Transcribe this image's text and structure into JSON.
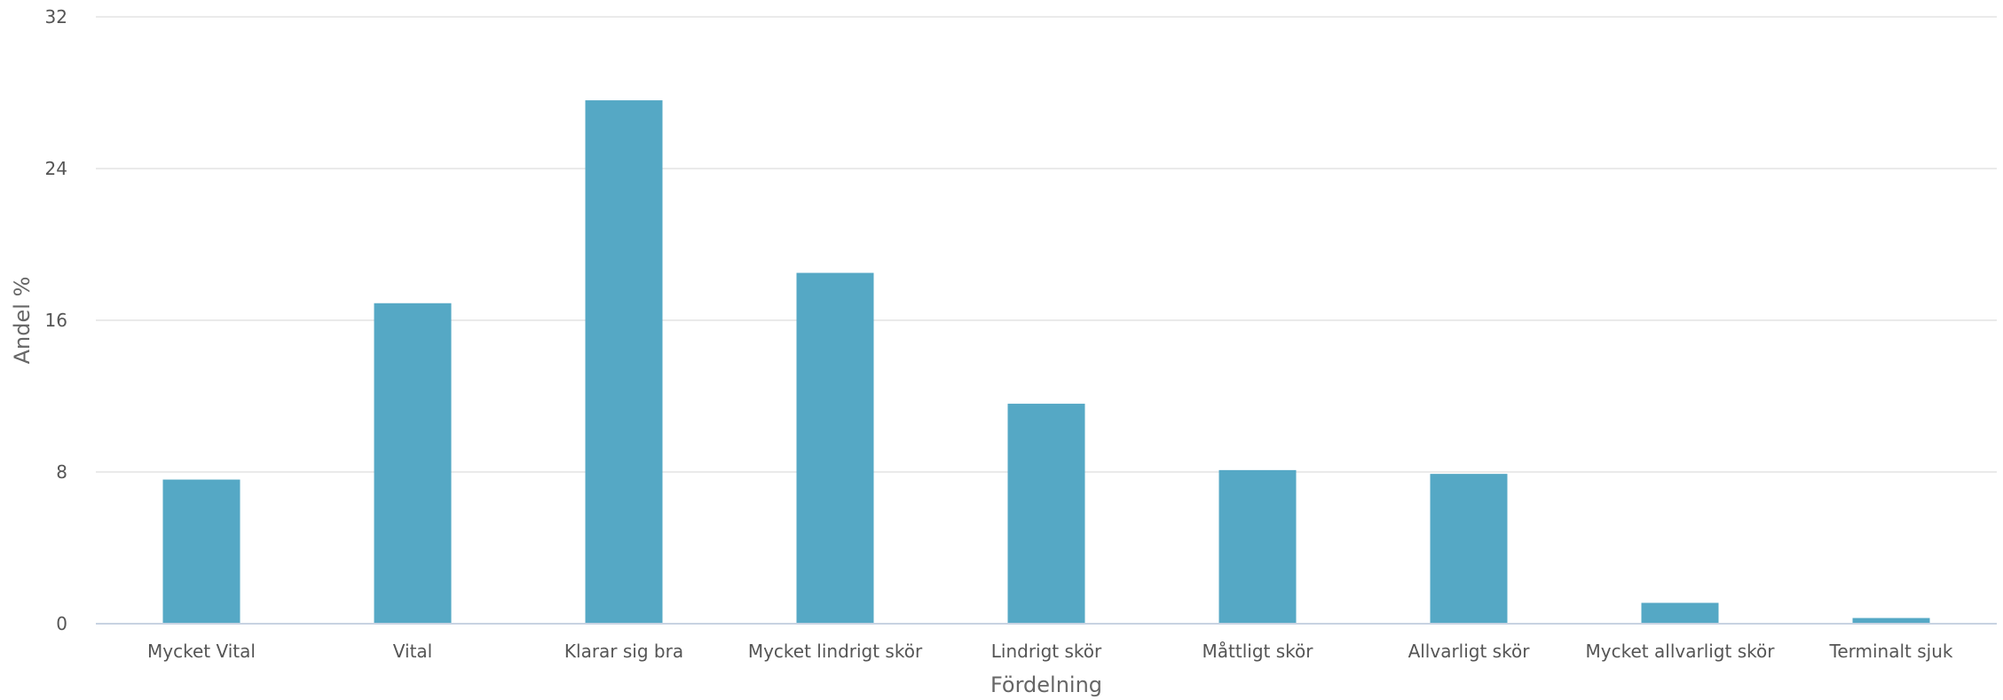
{
  "chart_data": {
    "type": "bar",
    "title": "",
    "xlabel": "Fördelning",
    "ylabel": "Andel %",
    "ylim": [
      0,
      32
    ],
    "yticks": [
      "0",
      "8",
      "16",
      "24",
      "32"
    ],
    "grid": true,
    "legend": "none",
    "bar_color": "#55a8c5",
    "categories": [
      "Mycket Vital",
      "Vital",
      "Klarar sig bra",
      "Mycket lindrigt skör",
      "Lindrigt skör",
      "Måttligt skör",
      "Allvarligt skör",
      "Mycket allvarligt skör",
      "Terminalt sjuk"
    ],
    "values": [
      7.6,
      16.9,
      27.6,
      18.5,
      11.6,
      8.1,
      7.9,
      1.1,
      0.3
    ]
  }
}
